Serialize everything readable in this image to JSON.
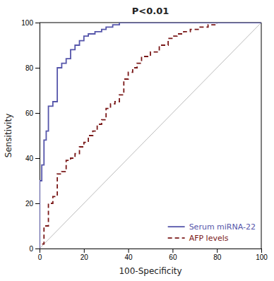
{
  "chart_data": {
    "type": "line",
    "title": "P<0.01",
    "xlabel": "100-Specificity",
    "ylabel": "Sensitivity",
    "xlim": [
      0,
      100
    ],
    "ylim": [
      0,
      100
    ],
    "xticks": [
      0,
      20,
      40,
      60,
      80,
      100
    ],
    "yticks": [
      0,
      20,
      40,
      60,
      80,
      100
    ],
    "grid": false,
    "legend": "lower right",
    "series": [
      {
        "name": "Serum miRNA-22",
        "color": "#5555aa",
        "line_style": "solid",
        "x": [
          0,
          0,
          1,
          1,
          2,
          2,
          3,
          3,
          4,
          4,
          6,
          6,
          8,
          8,
          10,
          10,
          12,
          12,
          14,
          14,
          16,
          16,
          18,
          18,
          20,
          20,
          22,
          22,
          25,
          25,
          28,
          28,
          30,
          30,
          33,
          33,
          36,
          36,
          40,
          40,
          43,
          43,
          46,
          46,
          50,
          50,
          55,
          55,
          100
        ],
        "values": [
          0,
          30,
          30,
          37,
          37,
          48,
          48,
          52,
          52,
          63,
          63,
          65,
          65,
          80,
          80,
          82,
          82,
          84,
          84,
          88,
          88,
          90,
          90,
          92,
          92,
          94,
          94,
          95,
          95,
          96,
          96,
          97,
          97,
          98,
          98,
          99,
          99,
          100,
          100,
          100,
          100,
          100,
          100,
          100,
          100,
          100,
          100,
          100,
          100
        ]
      },
      {
        "name": "AFP levels",
        "color": "#7a1818",
        "line_style": "dashed",
        "x": [
          0,
          0,
          2,
          2,
          4,
          4,
          6,
          6,
          8,
          8,
          10,
          10,
          12,
          12,
          14,
          14,
          16,
          16,
          18,
          18,
          20,
          20,
          22,
          22,
          24,
          24,
          26,
          26,
          28,
          28,
          30,
          30,
          32,
          32,
          34,
          34,
          36,
          36,
          38,
          38,
          40,
          40,
          42,
          42,
          44,
          44,
          46,
          46,
          50,
          50,
          54,
          54,
          58,
          58,
          60,
          60,
          62,
          62,
          65,
          65,
          68,
          68,
          72,
          72,
          76,
          76,
          80,
          80,
          85,
          85,
          90,
          90,
          95,
          95,
          100
        ],
        "values": [
          0,
          2,
          2,
          10,
          10,
          20,
          20,
          23,
          23,
          33,
          33,
          34,
          34,
          39,
          39,
          40,
          40,
          42,
          42,
          45,
          45,
          47,
          47,
          50,
          50,
          52,
          52,
          55,
          55,
          57,
          57,
          62,
          62,
          64,
          64,
          65,
          65,
          68,
          68,
          75,
          75,
          78,
          78,
          80,
          80,
          82,
          82,
          85,
          85,
          87,
          87,
          90,
          90,
          93,
          93,
          94,
          94,
          95,
          95,
          96,
          96,
          97,
          97,
          98,
          98,
          99,
          99,
          100,
          100,
          100,
          100,
          100,
          100,
          100,
          100
        ]
      },
      {
        "color": "#bbbbbb",
        "line_style": "solid",
        "x": [
          0,
          100
        ],
        "values": [
          0,
          100
        ]
      }
    ]
  }
}
